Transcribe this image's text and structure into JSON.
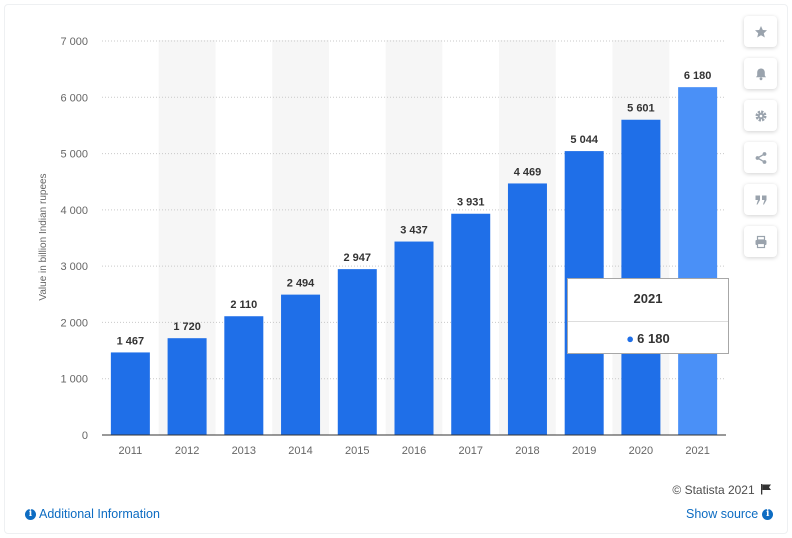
{
  "chart_data": {
    "type": "bar",
    "title": "",
    "xlabel": "",
    "ylabel": "Value in billion Indian rupees",
    "categories": [
      "2011",
      "2012",
      "2013",
      "2014",
      "2015",
      "2016",
      "2017",
      "2018",
      "2019",
      "2020",
      "2021"
    ],
    "values": [
      1467,
      1720,
      2110,
      2494,
      2947,
      3437,
      3931,
      4469,
      5044,
      5601,
      6180
    ],
    "value_labels": [
      "1 467",
      "1 720",
      "2 110",
      "2 494",
      "2 947",
      "3 437",
      "3 931",
      "4 469",
      "5 044",
      "5 601",
      "6 180"
    ],
    "ylim": [
      0,
      7000
    ],
    "yticks": [
      0,
      1000,
      2000,
      3000,
      4000,
      5000,
      6000,
      7000
    ],
    "ytick_labels": [
      "0",
      "1 000",
      "2 000",
      "3 000",
      "4 000",
      "5 000",
      "6 000",
      "7 000"
    ],
    "grid": true,
    "bar_color": "#1f6fe8",
    "highlight_color": "#4a90f7",
    "highlight_index": 10
  },
  "tooltip": {
    "title": "2021",
    "value": "6 180"
  },
  "sidebar": {
    "buttons": [
      "star-icon",
      "bell-icon",
      "gear-icon",
      "share-icon",
      "quote-icon",
      "print-icon"
    ]
  },
  "footer": {
    "copyright": "© Statista 2021",
    "additional_info": "Additional Information",
    "show_source": "Show source"
  }
}
